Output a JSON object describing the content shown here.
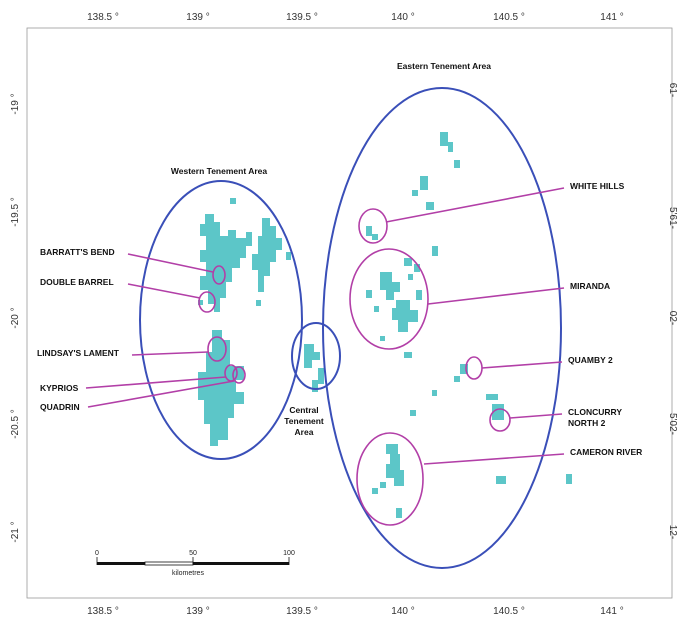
{
  "axes": {
    "lon_ticks": [
      "138.5 °",
      "139 °",
      "139.5 °",
      "140 °",
      "140.5 °",
      "141 °"
    ],
    "lat_ticks": [
      "-19 °",
      "-19.5 °",
      "-20 °",
      "-20.5 °",
      "-21 °"
    ],
    "right_ticks": [
      "61-",
      "5'61-",
      "02-",
      "5'02-",
      "12-"
    ]
  },
  "areas": {
    "western": "Western Tenement Area",
    "eastern": "Eastern Tenement Area",
    "central": [
      "Central",
      "Tenement",
      "Area"
    ]
  },
  "prospects": {
    "barratts_bend": "BARRATT'S BEND",
    "double_barrel": "DOUBLE BARREL",
    "lindsays_lament": "LINDSAY'S LAMENT",
    "kyprios": "KYPRIOS",
    "quadrin": "QUADRIN",
    "white_hills": "WHITE HILLS",
    "miranda": "MIRANDA",
    "quamby_2": "QUAMBY 2",
    "cloncurry_north_2": [
      "CLONCURRY",
      "NORTH 2"
    ],
    "cameron_river": "CAMERON RIVER"
  },
  "scale_bar": {
    "ticks": [
      "0",
      "50",
      "100"
    ],
    "unit": "kilometres"
  },
  "colors": {
    "tenement": "#5cc6c8",
    "area_ellipse": "#3a4fb8",
    "prospect_ellipse": "#b23fa7",
    "frame": "#888888"
  }
}
